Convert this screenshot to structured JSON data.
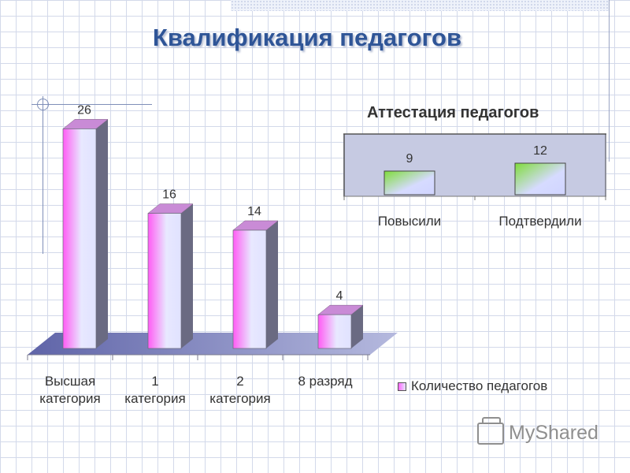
{
  "page": {
    "title": "Квалификация педагогов"
  },
  "logo": {
    "text": "MyShared"
  },
  "chart_data": [
    {
      "type": "bar",
      "title": "",
      "categories": [
        [
          "Высшая",
          "категория"
        ],
        [
          "1",
          "категория"
        ],
        [
          "2",
          "категория"
        ],
        [
          "8 разряд"
        ]
      ],
      "series": [
        {
          "name": "Количество педагогов",
          "values": [
            26,
            16,
            14,
            4
          ]
        }
      ],
      "ylim": [
        0,
        28
      ],
      "grid": false,
      "legend": "bottom-right",
      "colors": {
        "front": [
          "#ff5cf4",
          "#e8e8ff"
        ],
        "side": "#6a6a82",
        "top": "#c98bd6",
        "floor": "#6f74b6"
      }
    },
    {
      "type": "bar",
      "title": "Аттестация педагогов",
      "categories": [
        "Повысили",
        "Подтвердили"
      ],
      "series": [
        {
          "name": "",
          "values": [
            9,
            12
          ]
        }
      ],
      "ylim": [
        0,
        30
      ],
      "grid": false,
      "colors": {
        "front": [
          "#8be04a",
          "#d0d4ff"
        ],
        "plot": "#c6cae2"
      }
    }
  ]
}
